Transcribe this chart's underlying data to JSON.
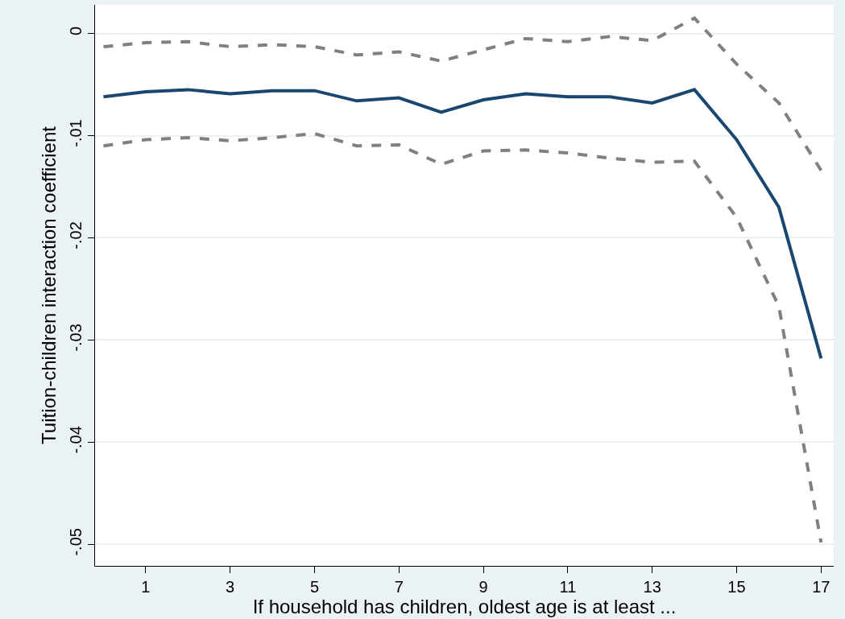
{
  "chart_data": {
    "type": "line",
    "xlabel": "If household has children, oldest age is at least ...",
    "ylabel": "Tuition-children interaction coefficient",
    "x": [
      0,
      1,
      2,
      3,
      4,
      5,
      6,
      7,
      8,
      9,
      10,
      11,
      12,
      13,
      14,
      15,
      16,
      17
    ],
    "series": [
      {
        "color": "#808080",
        "line_style": "dashed",
        "values": [
          -0.0013,
          -0.0009,
          -0.0008,
          -0.0013,
          -0.0011,
          -0.0013,
          -0.0021,
          -0.0018,
          -0.0027,
          -0.0016,
          -0.0005,
          -0.0008,
          -0.0003,
          -0.0007,
          0.0015,
          -0.003,
          -0.0068,
          -0.0134
        ]
      },
      {
        "color": "#808080",
        "line_style": "dashed",
        "values": [
          -0.011,
          -0.0104,
          -0.0102,
          -0.0105,
          -0.0102,
          -0.0098,
          -0.011,
          -0.0109,
          -0.0128,
          -0.0115,
          -0.0114,
          -0.0117,
          -0.0122,
          -0.0126,
          -0.0125,
          -0.018,
          -0.0267,
          -0.0498
        ]
      },
      {
        "color": "#1a476f",
        "line_style": "solid",
        "values": [
          -0.0062,
          -0.0057,
          -0.0055,
          -0.0059,
          -0.0056,
          -0.0056,
          -0.0066,
          -0.0063,
          -0.0077,
          -0.0065,
          -0.0059,
          -0.0062,
          -0.0062,
          -0.0068,
          -0.0055,
          -0.0104,
          -0.017,
          -0.0318
        ]
      }
    ],
    "xlim": [
      -0.2,
      17.3
    ],
    "xticks": [
      1,
      3,
      5,
      7,
      9,
      11,
      13,
      15,
      17
    ],
    "ylim": [
      -0.0521,
      0.0028
    ],
    "yticks": [
      {
        "value": 0,
        "label": "0"
      },
      {
        "value": -0.01,
        "label": "-.01"
      },
      {
        "value": -0.02,
        "label": "-.02"
      },
      {
        "value": -0.03,
        "label": "-.03"
      },
      {
        "value": -0.04,
        "label": "-.04"
      },
      {
        "value": -0.05,
        "label": "-.05"
      }
    ],
    "grid": "y",
    "marker": "none"
  }
}
